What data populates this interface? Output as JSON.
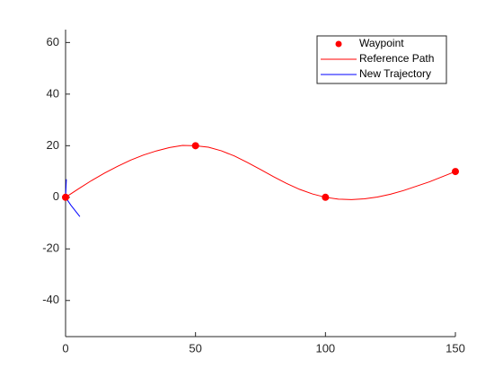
{
  "chart_data": {
    "type": "line",
    "xlim": [
      0,
      150
    ],
    "ylim": [
      -54,
      65
    ],
    "xticks": [
      0,
      50,
      100,
      150
    ],
    "yticks": [
      -40,
      -20,
      0,
      20,
      40,
      60
    ],
    "legend": "northeast",
    "series": [
      {
        "name": "Waypoint",
        "color": "#ff0000",
        "mode": "markers",
        "x": [
          0,
          50,
          100,
          150
        ],
        "values": [
          0,
          20,
          0,
          10
        ]
      },
      {
        "name": "Reference Path",
        "color": "#ff0000",
        "mode": "lines",
        "x": [
          0,
          5,
          10,
          15,
          20,
          25,
          30,
          35,
          40,
          45,
          50,
          55,
          60,
          65,
          70,
          75,
          80,
          85,
          90,
          95,
          100,
          105,
          110,
          115,
          120,
          125,
          130,
          135,
          140,
          145,
          150
        ],
        "values": [
          0,
          3.3,
          6.5,
          9.4,
          12,
          14.4,
          16.4,
          18,
          19.3,
          20.1,
          20,
          19.4,
          18,
          16,
          13.5,
          10.8,
          8,
          5.4,
          3.1,
          1.3,
          0,
          -0.7,
          -0.9,
          -0.6,
          0.1,
          1.2,
          2.6,
          4.3,
          6,
          8,
          10
        ]
      },
      {
        "name": "New Trajectory",
        "color": "#0000ff",
        "mode": "lines",
        "x": [
          0.3,
          0,
          2,
          5.5
        ],
        "values": [
          7,
          0,
          -3,
          -7.5
        ]
      }
    ]
  }
}
